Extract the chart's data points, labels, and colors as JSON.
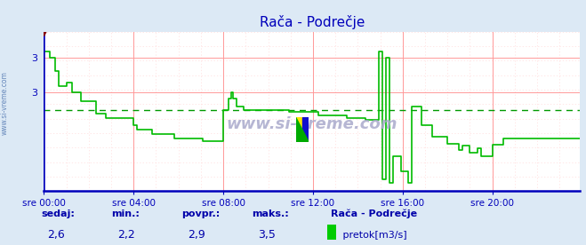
{
  "title": "Rača - Podrečje",
  "bg_color": "#dce9f5",
  "plot_bg": "#ffffff",
  "grid_color_major": "#ff9999",
  "grid_color_minor": "#ffdddd",
  "line_color": "#00bb00",
  "avg_line_color": "#009900",
  "avg_value": 2.85,
  "ylim": [
    2.15,
    3.52
  ],
  "xlabel_color": "#0000bb",
  "axis_color": "#0000bb",
  "title_color": "#0000bb",
  "footer_label_color": "#0000aa",
  "sedaj": "2,6",
  "min_val": "2,2",
  "povpr": "2,9",
  "maks": "3,5",
  "legend_station": "Rača - Podrečje",
  "legend_label": " pretok[m3/s]",
  "legend_color": "#00cc00",
  "xtick_labels": [
    "sre 00:00",
    "sre 04:00",
    "sre 08:00",
    "sre 12:00",
    "sre 16:00",
    "sre 20:00"
  ],
  "xtick_positions": [
    0,
    48,
    96,
    144,
    192,
    240
  ],
  "ytick_positions": [
    3.0,
    3.3
  ],
  "ytick_labels": [
    "3",
    "3"
  ],
  "total_points": 288,
  "flow": [
    3.35,
    3.35,
    3.35,
    3.3,
    3.3,
    3.3,
    3.18,
    3.18,
    3.05,
    3.05,
    3.05,
    3.05,
    3.08,
    3.08,
    3.08,
    3.0,
    3.0,
    3.0,
    3.0,
    3.0,
    2.92,
    2.92,
    2.92,
    2.92,
    2.92,
    2.92,
    2.92,
    2.92,
    2.82,
    2.82,
    2.82,
    2.82,
    2.82,
    2.78,
    2.78,
    2.78,
    2.78,
    2.78,
    2.78,
    2.78,
    2.78,
    2.78,
    2.78,
    2.78,
    2.78,
    2.78,
    2.78,
    2.78,
    2.72,
    2.72,
    2.68,
    2.68,
    2.68,
    2.68,
    2.68,
    2.68,
    2.68,
    2.68,
    2.64,
    2.64,
    2.64,
    2.64,
    2.64,
    2.64,
    2.64,
    2.64,
    2.64,
    2.64,
    2.64,
    2.64,
    2.6,
    2.6,
    2.6,
    2.6,
    2.6,
    2.6,
    2.6,
    2.6,
    2.6,
    2.6,
    2.6,
    2.6,
    2.6,
    2.6,
    2.6,
    2.58,
    2.58,
    2.58,
    2.58,
    2.58,
    2.58,
    2.58,
    2.58,
    2.58,
    2.58,
    2.58,
    2.85,
    2.85,
    2.85,
    2.95,
    3.0,
    2.95,
    2.95,
    2.88,
    2.88,
    2.88,
    2.88,
    2.85,
    2.85,
    2.85,
    2.85,
    2.85,
    2.85,
    2.85,
    2.85,
    2.85,
    2.85,
    2.85,
    2.85,
    2.85,
    2.85,
    2.85,
    2.85,
    2.85,
    2.85,
    2.85,
    2.85,
    2.85,
    2.85,
    2.85,
    2.85,
    2.83,
    2.83,
    2.83,
    2.83,
    2.83,
    2.83,
    2.83,
    2.83,
    2.83,
    2.83,
    2.83,
    2.83,
    2.83,
    2.83,
    2.83,
    2.83,
    2.8,
    2.8,
    2.8,
    2.8,
    2.8,
    2.8,
    2.8,
    2.8,
    2.8,
    2.8,
    2.8,
    2.8,
    2.8,
    2.8,
    2.8,
    2.78,
    2.78,
    2.78,
    2.78,
    2.78,
    2.78,
    2.78,
    2.78,
    2.78,
    2.78,
    2.76,
    2.76,
    2.76,
    2.76,
    2.76,
    2.76,
    2.76,
    3.35,
    3.35,
    2.25,
    2.25,
    3.3,
    3.3,
    2.22,
    2.22,
    2.45,
    2.45,
    2.45,
    2.45,
    2.32,
    2.32,
    2.32,
    2.32,
    2.22,
    2.22,
    2.88,
    2.88,
    2.88,
    2.88,
    2.88,
    2.72,
    2.72,
    2.72,
    2.72,
    2.72,
    2.72,
    2.62,
    2.62,
    2.62,
    2.62,
    2.62,
    2.62,
    2.62,
    2.62,
    2.56,
    2.56,
    2.56,
    2.56,
    2.56,
    2.56,
    2.5,
    2.5,
    2.54,
    2.54,
    2.54,
    2.54,
    2.48,
    2.48,
    2.48,
    2.48,
    2.52,
    2.52,
    2.45,
    2.45,
    2.45,
    2.45,
    2.45,
    2.45,
    2.55,
    2.55,
    2.55,
    2.55,
    2.55,
    2.55,
    2.6,
    2.6,
    2.6,
    2.6,
    2.6,
    2.6,
    2.6,
    2.6,
    2.6,
    2.6,
    2.6,
    2.6
  ]
}
